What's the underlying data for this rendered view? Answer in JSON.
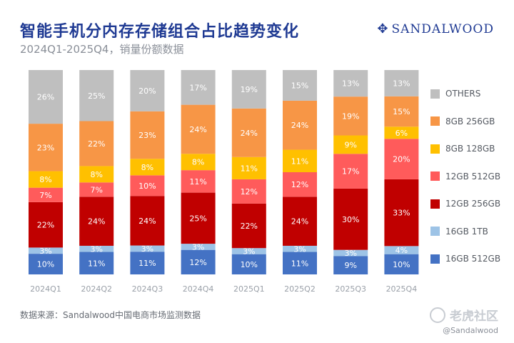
{
  "header": {
    "title": "智能手机分内存存储组合占比趋势变化",
    "subtitle": "2024Q1-2025Q4，销量份额数据",
    "brand": "SANDALWOOD",
    "brand_icon": "sandalwood-logo-icon"
  },
  "footer": {
    "source": "数据来源：Sandalwood中国电商市场监测数据",
    "watermark": "老虎社区",
    "watermark_handle": "@Sandalwood"
  },
  "chart_data": {
    "type": "bar",
    "stacked": true,
    "normalized": "100%",
    "title": "智能手机分内存存储组合占比趋势变化",
    "subtitle": "2024Q1-2025Q4，销量份额数据",
    "categories": [
      "2024Q1",
      "2024Q2",
      "2024Q3",
      "2024Q4",
      "2025Q1",
      "2025Q2",
      "2025Q3",
      "2025Q4"
    ],
    "series": [
      {
        "name": "16GB 512GB",
        "color": "#4472c4",
        "values": [
          10,
          11,
          11,
          12,
          10,
          11,
          9,
          10
        ],
        "labels": [
          "10%",
          "11%",
          "11%",
          "12%",
          "10%",
          "11%",
          "9%",
          "10%"
        ]
      },
      {
        "name": "16GB 1TB",
        "color": "#9dc3e6",
        "values": [
          3,
          3,
          3,
          3,
          3,
          3,
          3,
          4
        ],
        "labels": [
          "3%",
          "3%",
          "3%",
          "3%",
          "3%",
          "3%",
          "3%",
          "4%"
        ]
      },
      {
        "name": "12GB 256GB",
        "color": "#c00000",
        "values": [
          22,
          24,
          24,
          25,
          22,
          24,
          30,
          33
        ],
        "labels": [
          "22%",
          "24%",
          "24%",
          "25%",
          "22%",
          "24%",
          "30%",
          "33%"
        ]
      },
      {
        "name": "12GB 512GB",
        "color": "#ff5b5b",
        "values": [
          7,
          7,
          10,
          11,
          12,
          12,
          17,
          20
        ],
        "labels": [
          "7%",
          "7%",
          "10%",
          "11%",
          "12%",
          "12%",
          "17%",
          "20%"
        ]
      },
      {
        "name": "8GB 128GB",
        "color": "#ffc000",
        "values": [
          8,
          8,
          8,
          8,
          11,
          11,
          9,
          6
        ],
        "labels": [
          "8%",
          "8%",
          "8%",
          "8%",
          "11%",
          "11%",
          "9%",
          "6%"
        ]
      },
      {
        "name": "8GB 256GB",
        "color": "#f79646",
        "values": [
          23,
          22,
          23,
          24,
          24,
          24,
          19,
          15
        ],
        "labels": [
          "23%",
          "22%",
          "23%",
          "24%",
          "24%",
          "24%",
          "19%",
          "15%"
        ]
      },
      {
        "name": "OTHERS",
        "color": "#bfbfbf",
        "values": [
          26,
          25,
          20,
          17,
          19,
          15,
          13,
          13
        ],
        "labels": [
          "26%",
          "25%",
          "20%",
          "17%",
          "19%",
          "15%",
          "13%",
          "13%"
        ]
      }
    ],
    "legend": [
      "OTHERS",
      "8GB 256GB",
      "8GB 128GB",
      "12GB 512GB",
      "12GB 256GB",
      "16GB 1TB",
      "16GB 512GB"
    ],
    "legend_position": "right",
    "ylim": [
      0,
      100
    ],
    "xlabel": "",
    "ylabel": "",
    "grid": false
  }
}
